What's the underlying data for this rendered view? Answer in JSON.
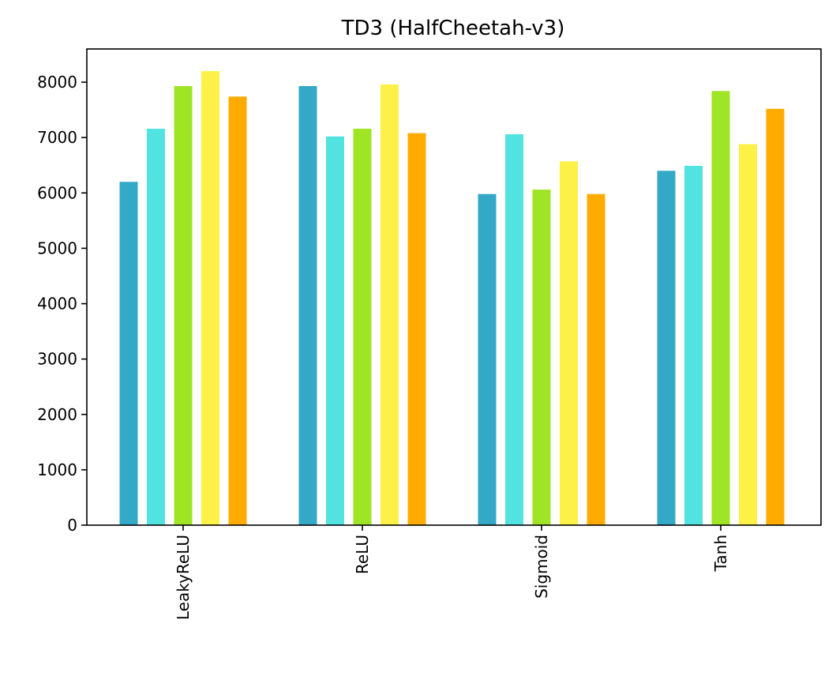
{
  "chart_data": {
    "type": "bar",
    "title": "TD3 (HalfCheetah-v3)",
    "xlabel": "",
    "ylabel": "",
    "categories": [
      "LeakyReLU",
      "ReLU",
      "Sigmoid",
      "Tanh"
    ],
    "ylim": [
      0,
      8600
    ],
    "yticks": [
      "0",
      "1000",
      "2000",
      "3000",
      "4000",
      "5000",
      "6000",
      "7000",
      "8000"
    ],
    "grid": false,
    "legend": "none",
    "x_tick_rotation": "vertical",
    "series": [
      {
        "color": "#33a8c7",
        "values": [
          6200,
          7930,
          5980,
          6400
        ]
      },
      {
        "color": "#52e3e1",
        "values": [
          7160,
          7020,
          7060,
          6490
        ]
      },
      {
        "color": "#a0e426",
        "values": [
          7930,
          7160,
          6060,
          7840
        ]
      },
      {
        "color": "#fdf148",
        "values": [
          8200,
          7960,
          6570,
          6880
        ]
      },
      {
        "color": "#ffab00",
        "values": [
          7740,
          7080,
          5980,
          7520
        ]
      }
    ]
  }
}
